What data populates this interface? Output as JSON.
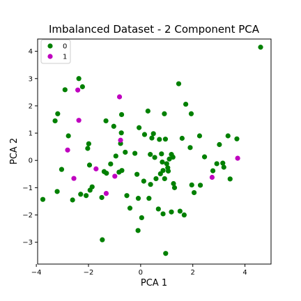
{
  "chart_data": {
    "type": "scatter",
    "title": "Imbalanced Dataset - 2 Component PCA",
    "xlabel": "PCA 1",
    "ylabel": "PCA 2",
    "xlim": [
      -3.95,
      5.0
    ],
    "ylim": [
      -3.8,
      4.45
    ],
    "xticks": [
      -4,
      -2,
      0,
      2,
      4
    ],
    "yticks": [
      -3,
      -2,
      -1,
      0,
      1,
      2,
      3,
      4
    ],
    "grid": false,
    "legend": {
      "position": "top-left",
      "entries": [
        "0",
        "1"
      ]
    },
    "series": [
      {
        "name": "0",
        "color": "#008000",
        "points": [
          [
            -3.75,
            -1.43
          ],
          [
            -3.28,
            1.45
          ],
          [
            -3.18,
            1.71
          ],
          [
            -3.2,
            -1.14
          ],
          [
            -3.03,
            -0.33
          ],
          [
            -2.9,
            2.59
          ],
          [
            -2.77,
            0.9
          ],
          [
            -2.61,
            -1.45
          ],
          [
            -2.37,
            3.0
          ],
          [
            -2.23,
            2.7
          ],
          [
            -2.3,
            -1.24
          ],
          [
            -2.09,
            -1.29
          ],
          [
            -2.03,
            0.44
          ],
          [
            -1.99,
            0.61
          ],
          [
            -1.96,
            -0.17
          ],
          [
            -1.94,
            -1.09
          ],
          [
            -1.86,
            -0.97
          ],
          [
            -1.47,
            -2.91
          ],
          [
            -1.49,
            -1.36
          ],
          [
            -1.33,
            1.45
          ],
          [
            -1.4,
            -0.41
          ],
          [
            -1.31,
            -0.47
          ],
          [
            -1.15,
            -0.13
          ],
          [
            -1.03,
            1.25
          ],
          [
            -0.95,
            0.16
          ],
          [
            -0.83,
            -0.43
          ],
          [
            -0.77,
            0.62
          ],
          [
            -0.74,
            1.01
          ],
          [
            -0.73,
            1.68
          ],
          [
            -0.72,
            -0.37
          ],
          [
            -0.59,
            0.3
          ],
          [
            -0.53,
            -1.29
          ],
          [
            -0.41,
            -1.75
          ],
          [
            -0.22,
            0.26
          ],
          [
            -0.14,
            -0.51
          ],
          [
            -0.1,
            -2.57
          ],
          [
            -0.09,
            -1.39
          ],
          [
            -0.06,
            1.2
          ],
          [
            0.04,
            -2.1
          ],
          [
            0.12,
            -0.76
          ],
          [
            0.15,
            0.95
          ],
          [
            0.28,
            1.81
          ],
          [
            0.32,
            -1.39
          ],
          [
            0.37,
            0.22
          ],
          [
            0.38,
            -0.88
          ],
          [
            0.43,
            0.82
          ],
          [
            0.49,
            0.98
          ],
          [
            0.54,
            0.11
          ],
          [
            0.59,
            -0.67
          ],
          [
            0.68,
            -1.78
          ],
          [
            0.72,
            0.77
          ],
          [
            0.76,
            -0.49
          ],
          [
            0.8,
            0.24
          ],
          [
            0.83,
            -0.06
          ],
          [
            0.86,
            -0.37
          ],
          [
            0.86,
            -1.96
          ],
          [
            0.91,
            1.71
          ],
          [
            0.95,
            0.78
          ],
          [
            0.92,
            -0.67
          ],
          [
            0.96,
            -3.41
          ],
          [
            1.0,
            -0.12
          ],
          [
            1.04,
            -0.27
          ],
          [
            1.06,
            -0.39
          ],
          [
            1.1,
            0.05
          ],
          [
            1.18,
            -1.89
          ],
          [
            1.18,
            0.22
          ],
          [
            1.24,
            0.12
          ],
          [
            1.26,
            -0.85
          ],
          [
            1.3,
            -1.0
          ],
          [
            1.46,
            2.81
          ],
          [
            1.51,
            -1.86
          ],
          [
            1.59,
            0.81
          ],
          [
            1.67,
            -2.0
          ],
          [
            1.73,
            2.06
          ],
          [
            1.9,
            0.47
          ],
          [
            1.94,
            1.71
          ],
          [
            1.96,
            -0.9
          ],
          [
            2.05,
            -1.18
          ],
          [
            2.26,
            0.9
          ],
          [
            2.29,
            -0.91
          ],
          [
            2.45,
            0.13
          ],
          [
            2.77,
            -0.38
          ],
          [
            2.92,
            -0.12
          ],
          [
            3.02,
            0.58
          ],
          [
            3.15,
            -0.1
          ],
          [
            3.19,
            -0.25
          ],
          [
            3.35,
            0.9
          ],
          [
            3.43,
            -0.68
          ],
          [
            3.69,
            0.79
          ],
          [
            4.6,
            4.15
          ]
        ]
      },
      {
        "name": "1",
        "color": "#bf00bf",
        "points": [
          [
            -2.8,
            0.38
          ],
          [
            -2.56,
            -0.66
          ],
          [
            -2.41,
            2.58
          ],
          [
            -2.37,
            1.47
          ],
          [
            -1.71,
            -0.31
          ],
          [
            -1.32,
            -1.21
          ],
          [
            -0.99,
            -0.58
          ],
          [
            -0.81,
            2.33
          ],
          [
            -0.77,
            0.74
          ],
          [
            2.74,
            -0.62
          ],
          [
            3.72,
            0.08
          ]
        ]
      }
    ]
  }
}
